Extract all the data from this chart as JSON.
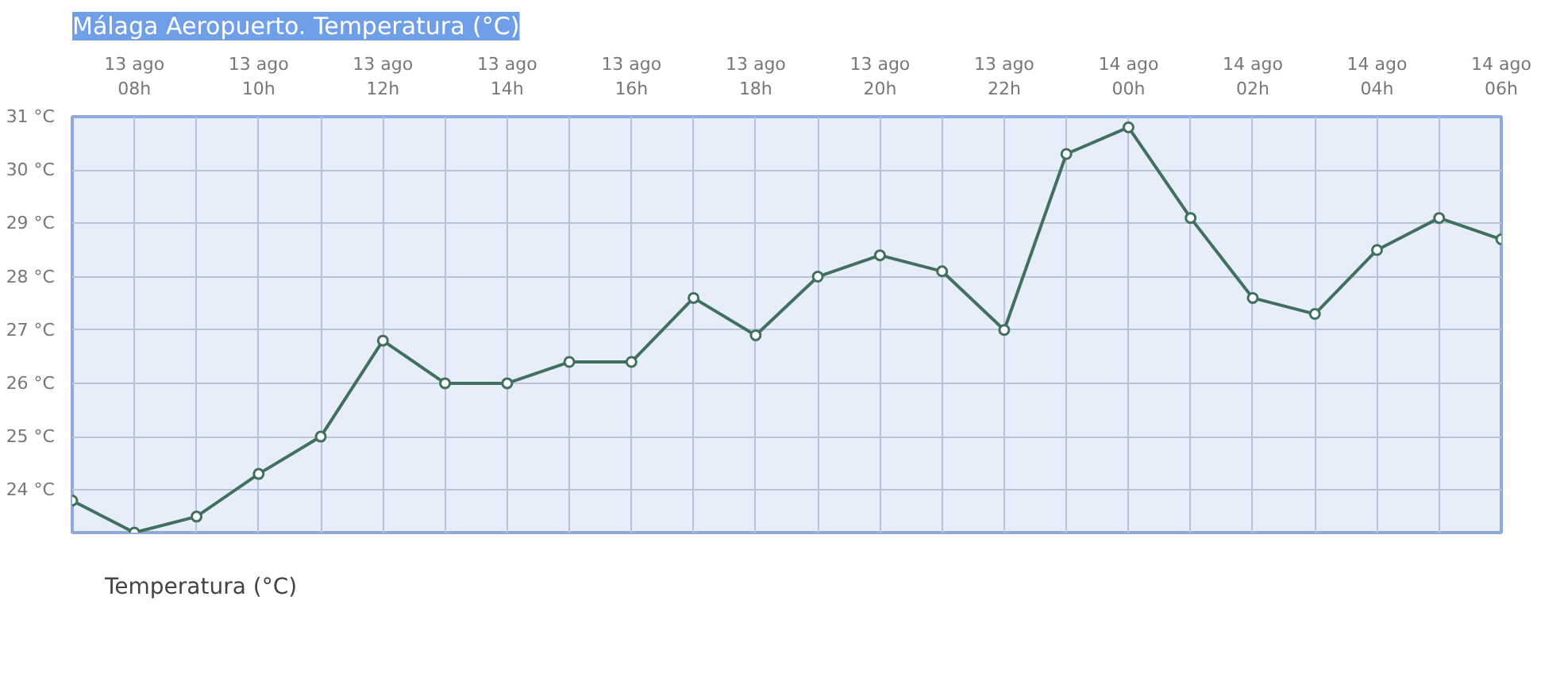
{
  "chart_data": {
    "type": "line",
    "title": "Málaga Aeropuerto. Temperatura (°C)",
    "categories": [
      null,
      "13 ago\n08h",
      null,
      "13 ago\n10h",
      null,
      "13 ago\n12h",
      null,
      "13 ago\n14h",
      null,
      "13 ago\n16h",
      null,
      "13 ago\n18h",
      null,
      "13 ago\n20h",
      null,
      "13 ago\n22h",
      null,
      "14 ago\n00h",
      null,
      "14 ago\n02h",
      null,
      "14 ago\n04h",
      null,
      "14 ago\n06h"
    ],
    "series": [
      {
        "name": "Temperatura (°C)",
        "color": "#41705f",
        "values": [
          23.8,
          23.2,
          23.5,
          24.3,
          25.0,
          26.8,
          26.0,
          26.0,
          26.4,
          26.4,
          27.6,
          26.9,
          28.0,
          28.4,
          28.1,
          27.0,
          30.3,
          30.8,
          29.1,
          27.6,
          27.3,
          28.5,
          29.1,
          28.7
        ]
      }
    ],
    "ylim": [
      23.2,
      31
    ],
    "yticks": [
      {
        "value": 24,
        "label": "24 °C"
      },
      {
        "value": 25,
        "label": "25 °C"
      },
      {
        "value": 26,
        "label": "26 °C"
      },
      {
        "value": 27,
        "label": "27 °C"
      },
      {
        "value": 28,
        "label": "28 °C"
      },
      {
        "value": 29,
        "label": "29 °C"
      },
      {
        "value": 30,
        "label": "30 °C"
      },
      {
        "value": 31,
        "label": "31 °C"
      }
    ],
    "grid": true,
    "legend": "bottom left",
    "marker": "circle",
    "line_style": "solid"
  }
}
